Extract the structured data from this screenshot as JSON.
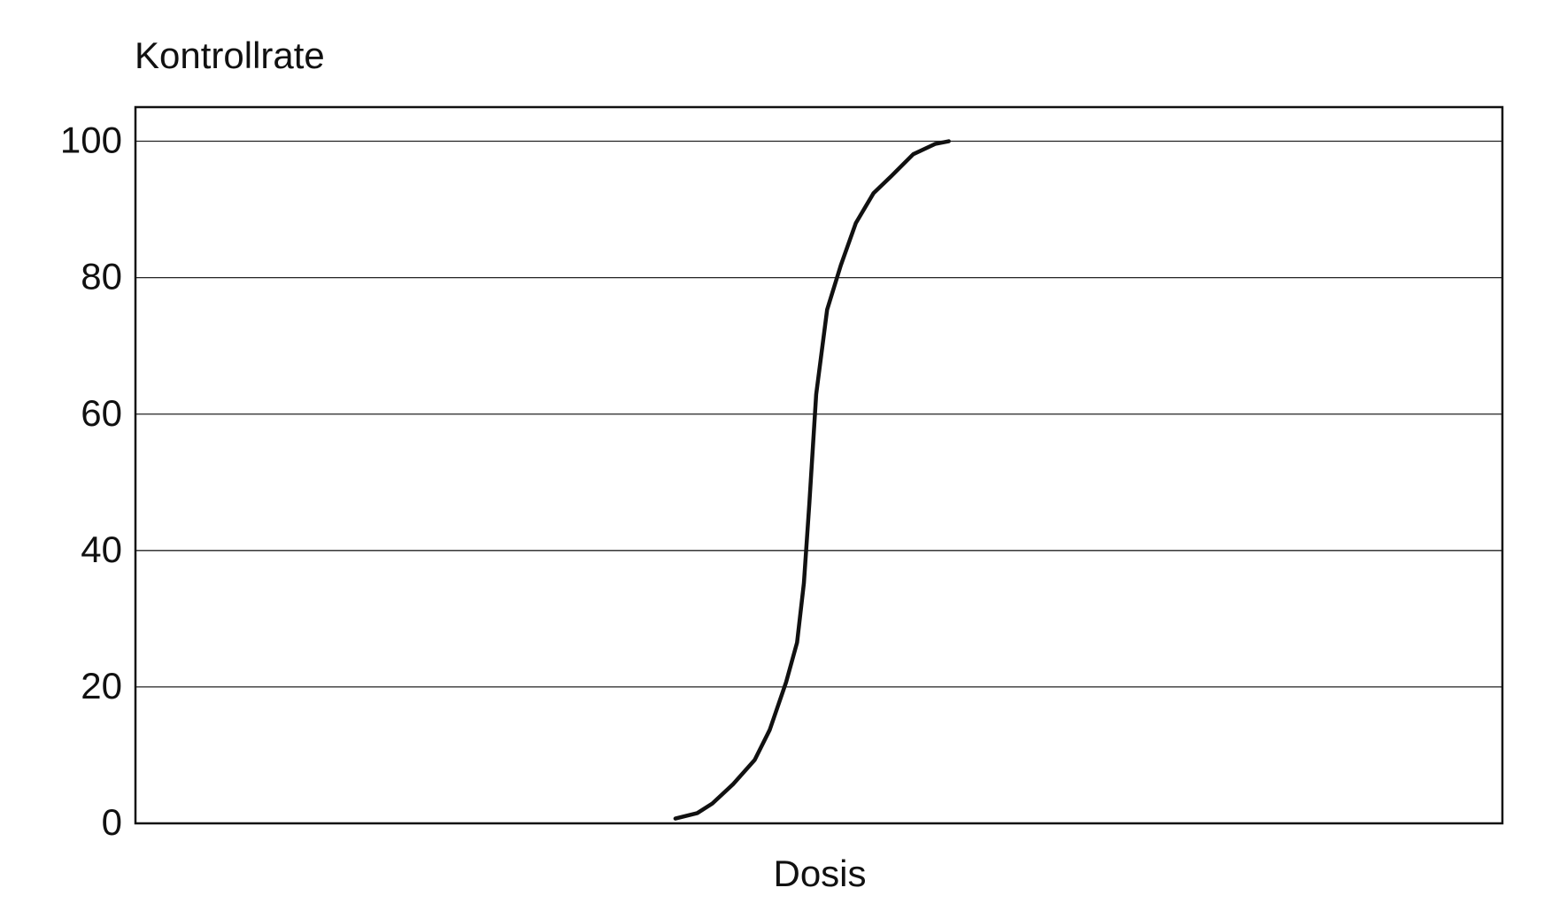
{
  "chart_data": {
    "type": "line",
    "y_label": "Kontrollrate",
    "x_label": "Dosis",
    "x": [
      39.5,
      41.1,
      42.2,
      43.7,
      45.3,
      46.4,
      47.6,
      48.4,
      48.9,
      49.3,
      49.8,
      50.6,
      51.6,
      52.7,
      54.0,
      55.3,
      56.9,
      58.5,
      59.5
    ],
    "series": [
      {
        "color": "#111111",
        "values": [
          0.7,
          1.5,
          2.9,
          5.7,
          9.3,
          13.7,
          20.7,
          26.5,
          35.2,
          46.9,
          62.9,
          75.3,
          81.8,
          88.0,
          92.4,
          94.9,
          98.1,
          99.6,
          100
        ]
      }
    ],
    "xlim": [
      0,
      100
    ],
    "ylim": [
      0,
      105
    ],
    "yticks": [
      0,
      20,
      40,
      60,
      80,
      100
    ],
    "grid": true
  }
}
